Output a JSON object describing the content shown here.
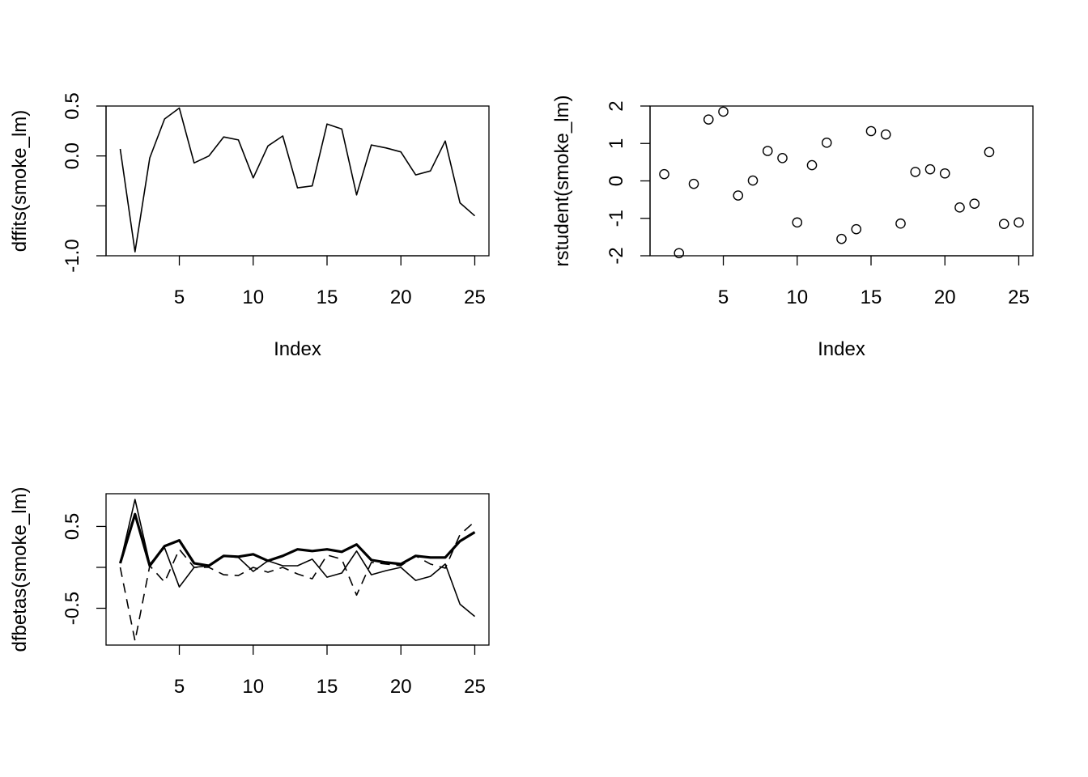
{
  "chart_data": [
    {
      "type": "line",
      "xlabel": "Index",
      "ylabel": "dffits(smoke_lm)",
      "xlim": [
        1,
        25
      ],
      "ylim": [
        -1.0,
        0.5
      ],
      "xticks": [
        "5",
        "10",
        "15",
        "20",
        "25"
      ],
      "yticks": [
        "-1.0",
        "0.0",
        "0.5"
      ],
      "series": [
        {
          "values": [
            0.07,
            -0.96,
            -0.02,
            0.37,
            0.48,
            -0.07,
            0.0,
            0.19,
            0.16,
            -0.22,
            0.1,
            0.2,
            -0.32,
            -0.3,
            0.32,
            0.27,
            -0.39,
            0.11,
            0.08,
            0.04,
            -0.19,
            -0.15,
            0.15,
            -0.47,
            -0.6
          ]
        }
      ]
    },
    {
      "type": "scatter",
      "xlabel": "Index",
      "ylabel": "rstudent(smoke_lm)",
      "xlim": [
        1,
        25
      ],
      "ylim": [
        -2,
        2
      ],
      "xticks": [
        "5",
        "10",
        "15",
        "20",
        "25"
      ],
      "yticks": [
        "-2",
        "-1",
        "0",
        "1",
        "2"
      ],
      "series": [
        {
          "values": [
            0.18,
            -1.93,
            -0.08,
            1.64,
            1.85,
            -0.39,
            0.01,
            0.8,
            0.61,
            -1.11,
            0.42,
            1.02,
            -1.55,
            -1.29,
            1.33,
            1.24,
            -1.14,
            0.24,
            0.31,
            0.2,
            -0.71,
            -0.61,
            0.77,
            -1.15,
            -1.11
          ]
        }
      ]
    },
    {
      "type": "line",
      "xlabel": "",
      "ylabel": "dfbetas(smoke_lm)",
      "xlim": [
        1,
        25
      ],
      "ylim": [
        -0.95,
        0.9
      ],
      "xticks": [
        "5",
        "10",
        "15",
        "20",
        "25"
      ],
      "yticks": [
        "-0.5",
        "0.5"
      ],
      "series": [
        {
          "style": "solid-thin",
          "values": [
            0.05,
            0.83,
            0.04,
            0.24,
            -0.24,
            0.0,
            0.02,
            0.14,
            0.12,
            -0.05,
            0.08,
            0.02,
            0.02,
            0.1,
            -0.12,
            -0.07,
            0.2,
            -0.09,
            -0.04,
            0.0,
            -0.16,
            -0.11,
            0.04,
            -0.45,
            -0.6
          ]
        },
        {
          "style": "dashed",
          "values": [
            0.0,
            -0.9,
            0.02,
            -0.18,
            0.22,
            0.0,
            0.0,
            -0.09,
            -0.1,
            0.0,
            -0.06,
            0.0,
            -0.08,
            -0.14,
            0.15,
            0.1,
            -0.34,
            0.06,
            0.04,
            0.02,
            0.14,
            0.04,
            -0.01,
            0.4,
            0.56
          ]
        },
        {
          "style": "solid-thick",
          "values": [
            0.05,
            0.65,
            0.02,
            0.26,
            0.33,
            0.05,
            0.02,
            0.14,
            0.13,
            0.16,
            0.08,
            0.14,
            0.22,
            0.2,
            0.22,
            0.19,
            0.28,
            0.09,
            0.06,
            0.04,
            0.14,
            0.12,
            0.12,
            0.32,
            0.43
          ]
        }
      ]
    }
  ]
}
